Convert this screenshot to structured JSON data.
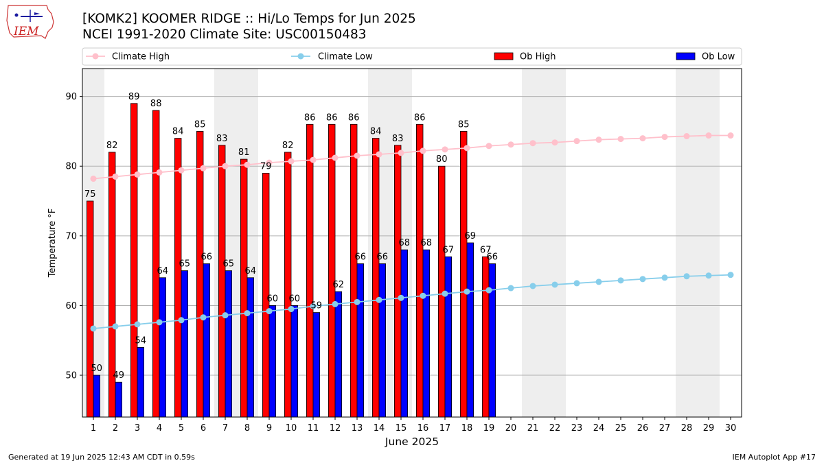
{
  "header": {
    "logo_text": "IEM",
    "title_line1": "[KOMK2] KOOMER RIDGE :: Hi/Lo Temps for Jun 2025",
    "title_line2": "NCEI 1991-2020 Climate Site: USC00150483"
  },
  "footer": {
    "generated": "Generated at 19 Jun 2025 12:43 AM CDT in 0.59s",
    "app": "IEM Autoplot App #17"
  },
  "colors": {
    "ob_high": "#ff0000",
    "ob_low": "#0000ff",
    "climate_high": "#ffc0cb",
    "climate_low": "#87ceeb",
    "weekend_shade": "#eeeeee",
    "grid": "#b0b0b0"
  },
  "chart_data": {
    "type": "bar",
    "xlabel": "June 2025",
    "ylabel": "Temperature °F",
    "xlim": [
      0.5,
      30.5
    ],
    "ylim": [
      44,
      94
    ],
    "yticks": [
      50,
      60,
      70,
      80,
      90
    ],
    "grid": "horizontal",
    "legend_position": "top (above plot)",
    "shaded_weekend_ranges": [
      [
        0.5,
        1.5
      ],
      [
        6.5,
        8.5
      ],
      [
        13.5,
        15.5
      ],
      [
        20.5,
        22.5
      ],
      [
        27.5,
        29.5
      ]
    ],
    "days": [
      1,
      2,
      3,
      4,
      5,
      6,
      7,
      8,
      9,
      10,
      11,
      12,
      13,
      14,
      15,
      16,
      17,
      18,
      19,
      20,
      21,
      22,
      23,
      24,
      25,
      26,
      27,
      28,
      29,
      30
    ],
    "series": [
      {
        "name": "Climate High",
        "kind": "line",
        "values": [
          78.2,
          78.5,
          78.8,
          79.1,
          79.4,
          79.7,
          80.0,
          80.2,
          80.5,
          80.7,
          80.9,
          81.2,
          81.5,
          81.7,
          81.9,
          82.2,
          82.4,
          82.6,
          82.9,
          83.1,
          83.3,
          83.4,
          83.6,
          83.8,
          83.9,
          84.0,
          84.2,
          84.3,
          84.4,
          84.4
        ]
      },
      {
        "name": "Climate Low",
        "kind": "line",
        "values": [
          56.7,
          57.0,
          57.3,
          57.6,
          57.9,
          58.3,
          58.6,
          58.9,
          59.2,
          59.5,
          59.9,
          60.2,
          60.5,
          60.8,
          61.1,
          61.4,
          61.7,
          62.0,
          62.2,
          62.5,
          62.8,
          63.0,
          63.2,
          63.4,
          63.6,
          63.8,
          64.0,
          64.2,
          64.3,
          64.4
        ]
      },
      {
        "name": "Ob High",
        "kind": "bar",
        "values": [
          75,
          82,
          89,
          88,
          84,
          85,
          83,
          81,
          79,
          82,
          86,
          86,
          86,
          84,
          83,
          86,
          80,
          85,
          67
        ]
      },
      {
        "name": "Ob Low",
        "kind": "bar",
        "values": [
          50,
          49,
          54,
          64,
          65,
          66,
          65,
          64,
          60,
          60,
          59,
          62,
          66,
          66,
          68,
          68,
          67,
          69,
          66
        ]
      }
    ]
  }
}
